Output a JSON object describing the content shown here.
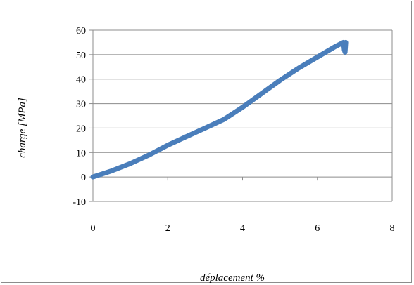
{
  "chart_data": {
    "type": "line",
    "xlabel": "déplacement %",
    "ylabel": "charge [MPa]",
    "xlim": [
      0,
      8
    ],
    "ylim": [
      -10,
      60
    ],
    "xticks": [
      0,
      2,
      4,
      6,
      8
    ],
    "yticks": [
      -10,
      0,
      10,
      20,
      30,
      40,
      50,
      60
    ],
    "grid": "horizontal",
    "legend": "none",
    "series": [
      {
        "color": "#4a7ebb",
        "x": [
          0,
          0.5,
          1.0,
          1.5,
          2.0,
          2.5,
          3.0,
          3.5,
          4.0,
          4.5,
          5.0,
          5.5,
          6.0,
          6.5,
          6.7,
          6.72,
          6.74,
          6.76
        ],
        "y": [
          0,
          2.5,
          5.5,
          9,
          13,
          16.5,
          20,
          23.5,
          28.5,
          34,
          39.5,
          44.5,
          49,
          53.5,
          55,
          52,
          51,
          55
        ]
      }
    ]
  }
}
